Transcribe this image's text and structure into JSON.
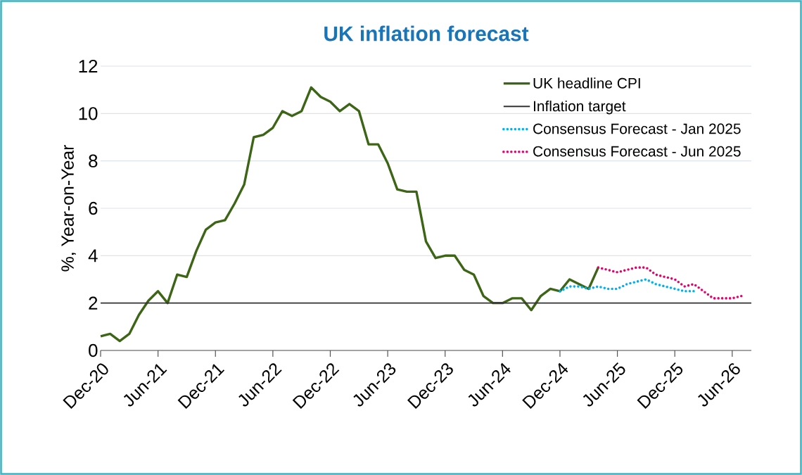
{
  "chart_data": {
    "type": "line",
    "title": "UK inflation forecast",
    "ylabel": "%, Year-on-Year",
    "xlim": [
      "2020-12",
      "2026-08"
    ],
    "xticks": [
      {
        "value": "2020-12",
        "label": "Dec-20"
      },
      {
        "value": "2021-06",
        "label": "Jun-21"
      },
      {
        "value": "2021-12",
        "label": "Dec-21"
      },
      {
        "value": "2022-06",
        "label": "Jun-22"
      },
      {
        "value": "2022-12",
        "label": "Dec-22"
      },
      {
        "value": "2023-06",
        "label": "Jun-23"
      },
      {
        "value": "2023-12",
        "label": "Dec-23"
      },
      {
        "value": "2024-06",
        "label": "Jun-24"
      },
      {
        "value": "2024-12",
        "label": "Dec-24"
      },
      {
        "value": "2025-06",
        "label": "Jun-25"
      },
      {
        "value": "2025-12",
        "label": "Dec-25"
      },
      {
        "value": "2026-06",
        "label": "Jun-26"
      }
    ],
    "ylim": [
      0,
      12
    ],
    "yticks": [
      0,
      2,
      4,
      6,
      8,
      10,
      12
    ],
    "grid": "y",
    "legend": "top right",
    "ref_lines": [
      {
        "axis": "y",
        "value": 2,
        "label": "Inflation target",
        "color": "#333333"
      }
    ],
    "series": [
      {
        "name": "UK headline CPI",
        "color": "#3d6516",
        "line_style": "solid",
        "x": [
          "2020-12",
          "2021-01",
          "2021-02",
          "2021-03",
          "2021-04",
          "2021-05",
          "2021-06",
          "2021-07",
          "2021-08",
          "2021-09",
          "2021-10",
          "2021-11",
          "2021-12",
          "2022-01",
          "2022-02",
          "2022-03",
          "2022-04",
          "2022-05",
          "2022-06",
          "2022-07",
          "2022-08",
          "2022-09",
          "2022-10",
          "2022-11",
          "2022-12",
          "2023-01",
          "2023-02",
          "2023-03",
          "2023-04",
          "2023-05",
          "2023-06",
          "2023-07",
          "2023-08",
          "2023-09",
          "2023-10",
          "2023-11",
          "2023-12",
          "2024-01",
          "2024-02",
          "2024-03",
          "2024-04",
          "2024-05",
          "2024-06",
          "2024-07",
          "2024-08",
          "2024-09",
          "2024-10",
          "2024-11",
          "2024-12",
          "2025-01",
          "2025-02",
          "2025-03",
          "2025-04"
        ],
        "values": [
          0.6,
          0.7,
          0.4,
          0.7,
          1.5,
          2.1,
          2.5,
          2.0,
          3.2,
          3.1,
          4.2,
          5.1,
          5.4,
          5.5,
          6.2,
          7.0,
          9.0,
          9.1,
          9.4,
          10.1,
          9.9,
          10.1,
          11.1,
          10.7,
          10.5,
          10.1,
          10.4,
          10.1,
          8.7,
          8.7,
          7.9,
          6.8,
          6.7,
          6.7,
          4.6,
          3.9,
          4.0,
          4.0,
          3.4,
          3.2,
          2.3,
          2.0,
          2.0,
          2.2,
          2.2,
          1.7,
          2.3,
          2.6,
          2.5,
          3.0,
          2.8,
          2.6,
          3.5
        ]
      },
      {
        "name": "Consensus Forecast - Jan 2025",
        "color": "#00b0f0",
        "line_style": "dotted",
        "x": [
          "2024-12",
          "2025-01",
          "2025-02",
          "2025-03",
          "2025-04",
          "2025-05",
          "2025-06",
          "2025-07",
          "2025-08",
          "2025-09",
          "2025-10",
          "2025-11",
          "2025-12",
          "2026-01",
          "2026-02"
        ],
        "values": [
          2.5,
          2.7,
          2.7,
          2.6,
          2.7,
          2.6,
          2.6,
          2.8,
          2.9,
          3.0,
          2.8,
          2.7,
          2.6,
          2.5,
          2.5
        ]
      },
      {
        "name": "Consensus Forecast - Jun 2025",
        "color": "#e5006e",
        "line_style": "dotted",
        "x": [
          "2025-04",
          "2025-05",
          "2025-06",
          "2025-07",
          "2025-08",
          "2025-09",
          "2025-10",
          "2025-11",
          "2025-12",
          "2026-01",
          "2026-02",
          "2026-03",
          "2026-04",
          "2026-05",
          "2026-06",
          "2026-07"
        ],
        "values": [
          3.5,
          3.4,
          3.3,
          3.4,
          3.5,
          3.5,
          3.2,
          3.1,
          3.0,
          2.7,
          2.8,
          2.5,
          2.2,
          2.2,
          2.2,
          2.3
        ]
      }
    ]
  }
}
